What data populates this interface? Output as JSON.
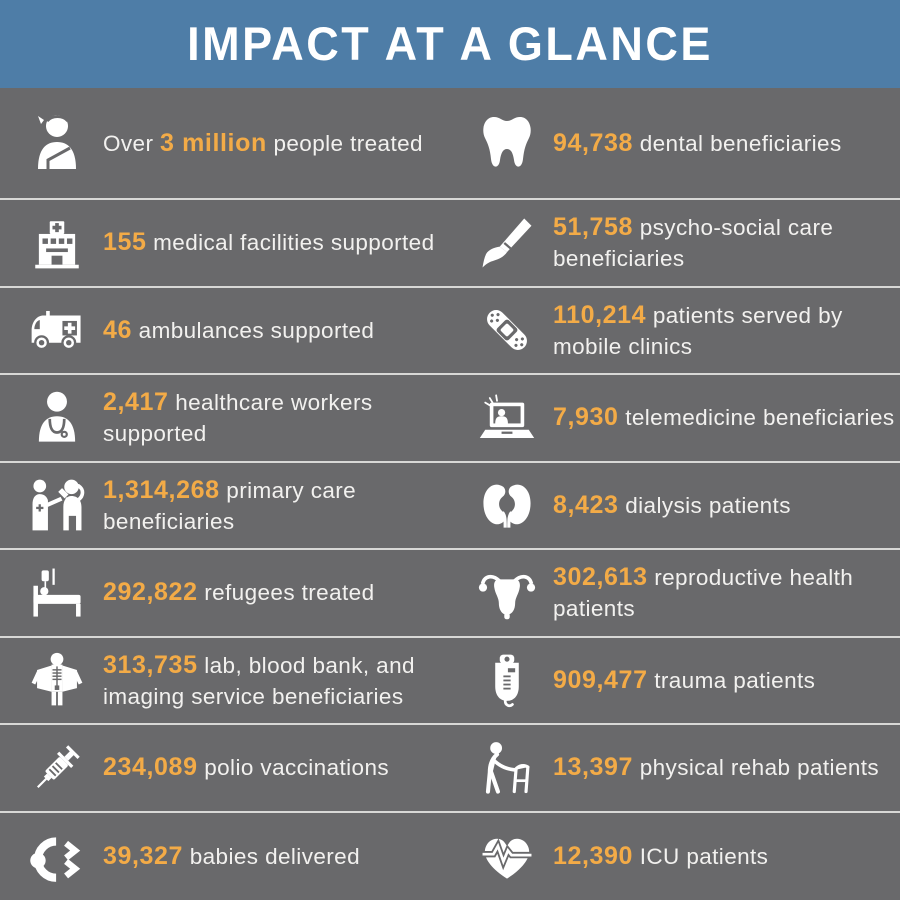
{
  "header": {
    "title": "IMPACT AT A GLANCE"
  },
  "colors": {
    "header_bg": "#4e7da7",
    "body_bg": "#69696b",
    "accent": "#f3ab47",
    "text": "#f2f1ef",
    "divider": "#d8d8d6"
  },
  "rows": [
    {
      "left": {
        "icon": "injured-person-icon",
        "prefix": "Over ",
        "value": "3 million",
        "label": " people treated"
      },
      "right": {
        "icon": "tooth-icon",
        "prefix": "",
        "value": "94,738",
        "label": " dental beneficiaries"
      }
    },
    {
      "left": {
        "icon": "hospital-icon",
        "prefix": "",
        "value": "155",
        "label": " medical facilities supported"
      },
      "right": {
        "icon": "paintbrush-icon",
        "prefix": "",
        "value": "51,758",
        "label": " psycho-social care beneficiaries"
      }
    },
    {
      "left": {
        "icon": "ambulance-icon",
        "prefix": "",
        "value": "46",
        "label": " ambulances supported"
      },
      "right": {
        "icon": "bandage-icon",
        "prefix": "",
        "value": "110,214",
        "label": " patients served by mobile clinics"
      }
    },
    {
      "left": {
        "icon": "healthcare-worker-icon",
        "prefix": "",
        "value": "2,417",
        "label": " healthcare workers supported"
      },
      "right": {
        "icon": "telemedicine-icon",
        "prefix": "",
        "value": "7,930",
        "label": " telemedicine beneficiaries"
      }
    },
    {
      "left": {
        "icon": "vaccination-icon",
        "prefix": "",
        "value": "1,314,268",
        "label": " primary care beneficiaries"
      },
      "right": {
        "icon": "kidneys-icon",
        "prefix": "",
        "value": "8,423",
        "label": " dialysis patients"
      }
    },
    {
      "left": {
        "icon": "hospital-bed-icon",
        "prefix": "",
        "value": "292,822",
        "label": " refugees treated"
      },
      "right": {
        "icon": "uterus-icon",
        "prefix": "",
        "value": "302,613",
        "label": " reproductive health patients"
      }
    },
    {
      "left": {
        "icon": "xray-icon",
        "prefix": "",
        "value": "313,735",
        "label": " lab, blood bank, and imaging service beneficiaries"
      },
      "right": {
        "icon": "iv-bag-icon",
        "prefix": "",
        "value": "909,477",
        "label": " trauma patients"
      }
    },
    {
      "left": {
        "icon": "syringe-icon",
        "prefix": "",
        "value": "234,089",
        "label": " polio vaccinations"
      },
      "right": {
        "icon": "walker-icon",
        "prefix": "",
        "value": "13,397",
        "label": " physical rehab patients"
      }
    },
    {
      "left": {
        "icon": "baby-icon",
        "prefix": "",
        "value": "39,327",
        "label": " babies delivered"
      },
      "right": {
        "icon": "heart-ecg-icon",
        "prefix": "",
        "value": "12,390",
        "label": " ICU patients"
      }
    }
  ],
  "chart_data": {
    "type": "table",
    "title": "IMPACT AT A GLANCE",
    "metrics": [
      {
        "label": "people treated",
        "value": "Over 3 million"
      },
      {
        "label": "dental beneficiaries",
        "value": 94738
      },
      {
        "label": "medical facilities supported",
        "value": 155
      },
      {
        "label": "psycho-social care beneficiaries",
        "value": 51758
      },
      {
        "label": "ambulances supported",
        "value": 46
      },
      {
        "label": "patients served by mobile clinics",
        "value": 110214
      },
      {
        "label": "healthcare workers supported",
        "value": 2417
      },
      {
        "label": "telemedicine beneficiaries",
        "value": 7930
      },
      {
        "label": "primary care beneficiaries",
        "value": 1314268
      },
      {
        "label": "dialysis patients",
        "value": 8423
      },
      {
        "label": "refugees treated",
        "value": 292822
      },
      {
        "label": "reproductive health patients",
        "value": 302613
      },
      {
        "label": "lab, blood bank, and imaging service beneficiaries",
        "value": 313735
      },
      {
        "label": "trauma patients",
        "value": 909477
      },
      {
        "label": "polio vaccinations",
        "value": 234089
      },
      {
        "label": "physical rehab patients",
        "value": 13397
      },
      {
        "label": "babies delivered",
        "value": 39327
      },
      {
        "label": "ICU patients",
        "value": 12390
      }
    ]
  }
}
